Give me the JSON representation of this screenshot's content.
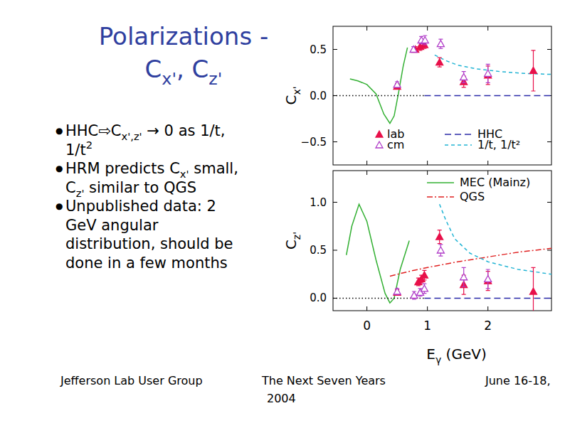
{
  "slide": {
    "title": [
      [
        {
          "t": "Polarizations -"
        }
      ],
      [
        {
          "t": "C"
        },
        {
          "t": "x'",
          "sub": true
        },
        {
          "t": ", C"
        },
        {
          "t": "z'",
          "sub": true
        }
      ]
    ],
    "bullet_char": "●",
    "bullets": [
      [
        [
          {
            "t": "HHC⇨C"
          },
          {
            "t": "x',z'",
            "sub": true
          },
          {
            "t": " → 0 as 1/t,"
          }
        ],
        [
          {
            "t": "1/t"
          },
          {
            "t": "2",
            "sup": true
          }
        ]
      ],
      [
        [
          {
            "t": "HRM predicts C"
          },
          {
            "t": "x'",
            "sub": true
          },
          {
            "t": " small,"
          }
        ],
        [
          {
            "t": "C"
          },
          {
            "t": "z'",
            "sub": true
          },
          {
            "t": " similar to QGS"
          }
        ]
      ],
      [
        [
          {
            "t": "Unpublished data: 2"
          }
        ],
        [
          {
            "t": "GeV angular"
          }
        ],
        [
          {
            "t": "distribution, should be"
          }
        ],
        [
          {
            "t": "done in a few months"
          }
        ]
      ]
    ],
    "footer": [
      "Jefferson Lab User Group",
      "The Next Seven Years",
      "June 16-18,",
      "2004"
    ]
  },
  "chart_data": [
    {
      "type": "scatter",
      "ylabel": [
        {
          "t": "C"
        },
        {
          "t": "x'",
          "sub": true
        }
      ],
      "xlim": [
        -0.56,
        3.05
      ],
      "ylim": [
        -0.75,
        0.75
      ],
      "xticks": [
        0,
        1,
        2
      ],
      "yticks": [
        {
          "value": -0.5,
          "label": "−0.5"
        },
        {
          "value": 0,
          "label": "0.0"
        },
        0.5
      ],
      "tick_labels": "y",
      "legend": "bottom",
      "series": [
        {
          "name": "lab",
          "type": "scatter",
          "marker": "triangle",
          "color": "#e8104a",
          "x": [
            0.5,
            0.8,
            0.88,
            0.95,
            1.2,
            1.6,
            2.0,
            2.75
          ],
          "values": [
            0.1,
            0.5,
            0.53,
            0.55,
            0.36,
            0.15,
            0.22,
            0.27
          ],
          "errors": [
            0.03,
            0.03,
            0.04,
            0.04,
            0.05,
            0.06,
            0.1,
            0.22
          ]
        },
        {
          "name": "cm",
          "type": "scatter",
          "marker": "triangle-open",
          "color": "#b03cc8",
          "x": [
            0.5,
            0.77,
            0.9,
            0.96,
            1.22,
            1.6,
            2.0
          ],
          "values": [
            0.12,
            0.5,
            0.6,
            0.6,
            0.56,
            0.2,
            0.24
          ],
          "errors": [
            0.03,
            0.03,
            0.04,
            0.05,
            0.05,
            0.06,
            0.1
          ]
        },
        {
          "name": "HHC",
          "type": "line",
          "line_style": "long-dash",
          "color": "#2a2aa8",
          "x": [
            0.95,
            3.05
          ],
          "values": [
            0,
            0
          ]
        },
        {
          "name": "1/t, 1/t²",
          "type": "line",
          "line_style": "dashed",
          "color": "#22b4d4",
          "x": [
            1.12,
            1.3,
            1.5,
            1.8,
            2.2,
            2.6,
            3.05
          ],
          "values": [
            0.44,
            0.38,
            0.33,
            0.29,
            0.26,
            0.24,
            0.23
          ]
        },
        {
          "type": "line",
          "line_style": "solid",
          "color": "#33b033",
          "x": [
            -0.28,
            -0.15,
            0.0,
            0.15,
            0.28,
            0.38,
            0.45,
            0.52,
            0.6,
            0.67
          ],
          "values": [
            0.18,
            0.16,
            0.12,
            0.02,
            -0.2,
            -0.3,
            -0.22,
            0.02,
            0.32,
            0.52
          ]
        },
        {
          "type": "line",
          "line_style": "dotted",
          "color": "#000000",
          "x": [
            -0.56,
            0.95
          ],
          "values": [
            0,
            0
          ]
        }
      ]
    },
    {
      "type": "scatter",
      "ylabel": [
        {
          "t": "C"
        },
        {
          "t": "z'",
          "sub": true
        }
      ],
      "xlabel": [
        {
          "t": "E"
        },
        {
          "t": "γ",
          "sub": true
        },
        {
          "t": " (GeV)"
        }
      ],
      "xlim": [
        -0.56,
        3.05
      ],
      "ylim": [
        -0.13,
        1.33
      ],
      "xticks": [
        0,
        1,
        2
      ],
      "yticks": [
        {
          "value": 0,
          "label": "0.0"
        },
        0.5,
        {
          "value": 1,
          "label": "1.0"
        }
      ],
      "legend": "top-right",
      "series": [
        {
          "name": "MEC (Mainz)",
          "type": "line",
          "line_style": "solid",
          "color": "#33b033",
          "x": [
            -0.34,
            -0.25,
            -0.13,
            0.0,
            0.15,
            0.3,
            0.38,
            0.45,
            0.55,
            0.7
          ],
          "values": [
            0.45,
            0.75,
            0.98,
            0.8,
            0.4,
            0.05,
            -0.05,
            0.0,
            0.3,
            0.6
          ]
        },
        {
          "name": "QGS",
          "type": "line",
          "line_style": "dash-dot",
          "color": "#e02020",
          "x": [
            0.38,
            0.7,
            1.0,
            1.5,
            2.0,
            2.5,
            3.05
          ],
          "values": [
            0.23,
            0.28,
            0.32,
            0.38,
            0.43,
            0.48,
            0.52
          ]
        },
        {
          "type": "line",
          "line_style": "dotted",
          "color": "#000000",
          "x": [
            -0.56,
            0.95
          ],
          "values": [
            0,
            0
          ]
        },
        {
          "type": "line",
          "line_style": "long-dash",
          "color": "#2a2aa8",
          "x": [
            0.95,
            3.05
          ],
          "values": [
            0,
            0
          ]
        },
        {
          "type": "line",
          "line_style": "dashed",
          "color": "#22b4d4",
          "x": [
            1.2,
            1.3,
            1.45,
            1.7,
            2.0,
            2.5,
            3.05
          ],
          "values": [
            0.98,
            0.82,
            0.62,
            0.47,
            0.38,
            0.3,
            0.25
          ]
        },
        {
          "type": "scatter",
          "marker": "triangle",
          "color": "#e8104a",
          "x": [
            0.5,
            0.85,
            0.9,
            0.95,
            1.2,
            1.6,
            2.0,
            2.75
          ],
          "values": [
            0.06,
            0.17,
            0.2,
            0.24,
            0.64,
            0.14,
            0.18,
            0.07
          ],
          "errors": [
            0.03,
            0.04,
            0.04,
            0.05,
            0.07,
            0.1,
            0.1,
            0.25
          ]
        },
        {
          "type": "scatter",
          "marker": "triangle-open",
          "color": "#b03cc8",
          "x": [
            0.5,
            0.78,
            0.88,
            0.95,
            1.22,
            1.6,
            2.0
          ],
          "values": [
            0.07,
            0.03,
            0.06,
            0.1,
            0.5,
            0.22,
            0.2
          ],
          "errors": [
            0.03,
            0.04,
            0.04,
            0.05,
            0.06,
            0.1,
            0.1
          ]
        }
      ]
    }
  ]
}
